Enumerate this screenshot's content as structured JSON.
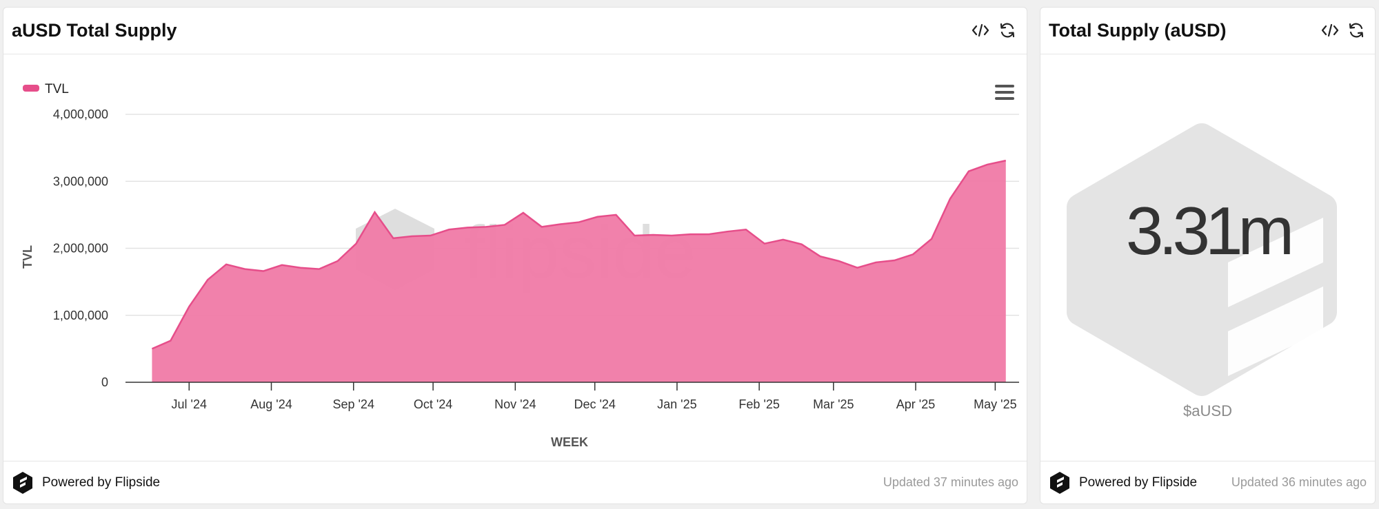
{
  "left_panel": {
    "title": "aUSD Total Supply",
    "footer": {
      "powered": "Powered by Flipside",
      "updated": "Updated 37 minutes ago"
    }
  },
  "right_panel": {
    "title": "Total Supply (aUSD)",
    "big_value": "3.31m",
    "unit_label": "$aUSD",
    "footer": {
      "powered": "Powered by Flipside",
      "updated": "Updated 36 minutes ago"
    }
  },
  "header_icons": [
    "code-icon",
    "refresh-icon"
  ],
  "chart_menu_icon": "hamburger-menu-icon",
  "watermark_text": "flipside",
  "colors": {
    "series": "#f07aa6",
    "series_line": "#e64e8a",
    "watermark": "#d3d3d3"
  },
  "chart_data": {
    "type": "area",
    "title": "",
    "xlabel": "WEEK",
    "ylabel": "TVL",
    "legend": {
      "entries": [
        "TVL"
      ],
      "placement": "top-left"
    },
    "grid": true,
    "ylim": [
      0,
      4000000
    ],
    "y_ticks": [
      "0",
      "1,000,000",
      "2,000,000",
      "3,000,000",
      "4,000,000"
    ],
    "y_tick_values": [
      0,
      1000000,
      2000000,
      3000000,
      4000000
    ],
    "x_tick_labels": [
      "Jul '24",
      "Aug '24",
      "Sep '24",
      "Oct '24",
      "Nov '24",
      "Dec '24",
      "Jan '25",
      "Feb '25",
      "Mar '25",
      "Apr '25",
      "May '25"
    ],
    "x_tick_dates": [
      "2024-07-01",
      "2024-08-01",
      "2024-09-01",
      "2024-10-01",
      "2024-11-01",
      "2024-12-01",
      "2025-01-01",
      "2025-02-01",
      "2025-03-01",
      "2025-04-01",
      "2025-05-01"
    ],
    "series": [
      {
        "name": "TVL",
        "x": [
          "2024-06-17",
          "2024-06-24",
          "2024-07-01",
          "2024-07-08",
          "2024-07-15",
          "2024-07-22",
          "2024-07-29",
          "2024-08-05",
          "2024-08-12",
          "2024-08-19",
          "2024-08-26",
          "2024-09-02",
          "2024-09-09",
          "2024-09-16",
          "2024-09-23",
          "2024-09-30",
          "2024-10-07",
          "2024-10-14",
          "2024-10-21",
          "2024-10-28",
          "2024-11-04",
          "2024-11-11",
          "2024-11-18",
          "2024-11-25",
          "2024-12-02",
          "2024-12-09",
          "2024-12-16",
          "2024-12-23",
          "2024-12-30",
          "2025-01-06",
          "2025-01-13",
          "2025-01-20",
          "2025-01-27",
          "2025-02-03",
          "2025-02-10",
          "2025-02-17",
          "2025-02-24",
          "2025-03-03",
          "2025-03-10",
          "2025-03-17",
          "2025-03-24",
          "2025-03-31",
          "2025-04-07",
          "2025-04-14",
          "2025-04-21",
          "2025-04-28",
          "2025-05-05"
        ],
        "values": [
          500000,
          620000,
          1130000,
          1530000,
          1760000,
          1690000,
          1660000,
          1750000,
          1710000,
          1690000,
          1810000,
          2070000,
          2540000,
          2150000,
          2180000,
          2190000,
          2280000,
          2310000,
          2320000,
          2350000,
          2530000,
          2320000,
          2360000,
          2390000,
          2470000,
          2500000,
          2190000,
          2200000,
          2190000,
          2210000,
          2210000,
          2250000,
          2280000,
          2070000,
          2130000,
          2060000,
          1880000,
          1810000,
          1710000,
          1790000,
          1820000,
          1910000,
          2140000,
          2740000,
          3150000,
          3250000,
          3310000
        ]
      }
    ]
  }
}
